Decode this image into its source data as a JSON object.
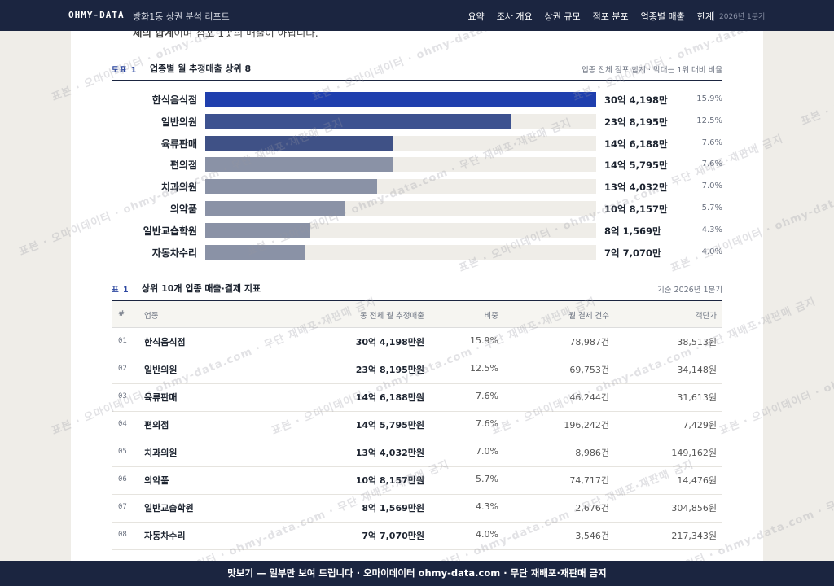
{
  "nav": {
    "brand": "OHMY-DATA",
    "title": "방화1동 상권 분석 리포트",
    "links": [
      "요약",
      "조사 개요",
      "상권 규모",
      "점포 분포",
      "업종별 매출",
      "한계"
    ],
    "period": "2026년 1분기"
  },
  "intro": {
    "bold": "체의 합계",
    "rest": "이며 점포 1곳의 매출이 아닙니다."
  },
  "figure": {
    "label": "도표 1",
    "title": "업종별 월 추정매출 상위 8",
    "note": "업종 전체 점포 합계 · 막대는 1위 대비 비율",
    "bars": [
      {
        "name": "한식음식점",
        "value": 304198,
        "value_label": "30억 4,198만",
        "share": "15.9%",
        "color": "#1f3fae"
      },
      {
        "name": "일반의원",
        "value": 238195,
        "value_label": "23억 8,195만",
        "share": "12.5%",
        "color": "#3d5290"
      },
      {
        "name": "육류판매",
        "value": 146188,
        "value_label": "14억 6,188만",
        "share": "7.6%",
        "color": "#3f5186"
      },
      {
        "name": "편의점",
        "value": 145795,
        "value_label": "14억 5,795만",
        "share": "7.6%",
        "color": "#8a92a6"
      },
      {
        "name": "치과의원",
        "value": 134032,
        "value_label": "13억 4,032만",
        "share": "7.0%",
        "color": "#8a92a6"
      },
      {
        "name": "의약품",
        "value": 108157,
        "value_label": "10억 8,157만",
        "share": "5.7%",
        "color": "#8a92a6"
      },
      {
        "name": "일반교습학원",
        "value": 81569,
        "value_label": "8억 1,569만",
        "share": "4.3%",
        "color": "#8a92a6"
      },
      {
        "name": "자동차수리",
        "value": 77070,
        "value_label": "7억 7,070만",
        "share": "4.0%",
        "color": "#8a92a6"
      }
    ]
  },
  "table": {
    "label": "표 1",
    "title": "상위 10개 업종 매출·결제 지표",
    "note": "기준 2026년 1분기",
    "columns": [
      "#",
      "업종",
      "동 전체 월 추정매출",
      "비중",
      "월 결제 건수",
      "객단가"
    ],
    "rows": [
      [
        "01",
        "한식음식점",
        "30억 4,198만원",
        "15.9%",
        "78,987건",
        "38,513원"
      ],
      [
        "02",
        "일반의원",
        "23억 8,195만원",
        "12.5%",
        "69,753건",
        "34,148원"
      ],
      [
        "03",
        "육류판매",
        "14억 6,188만원",
        "7.6%",
        "46,244건",
        "31,613원"
      ],
      [
        "04",
        "편의점",
        "14억 5,795만원",
        "7.6%",
        "196,242건",
        "7,429원"
      ],
      [
        "05",
        "치과의원",
        "13억 4,032만원",
        "7.0%",
        "8,986건",
        "149,162원"
      ],
      [
        "06",
        "의약품",
        "10억 8,157만원",
        "5.7%",
        "74,717건",
        "14,476원"
      ],
      [
        "07",
        "일반교습학원",
        "8억 1,569만원",
        "4.3%",
        "2,676건",
        "304,856원"
      ],
      [
        "08",
        "자동차수리",
        "7억 7,070만원",
        "4.0%",
        "3,546건",
        "217,343원"
      ]
    ]
  },
  "watermark": "표본 · 오마이데이터 · ohmy-data.com · 무단 재배포·재판매 금지",
  "footer": "맛보기 — 일부만 보여 드립니다 · 오마이데이터 ohmy-data.com · 무단 재배포·재판매 금지"
}
